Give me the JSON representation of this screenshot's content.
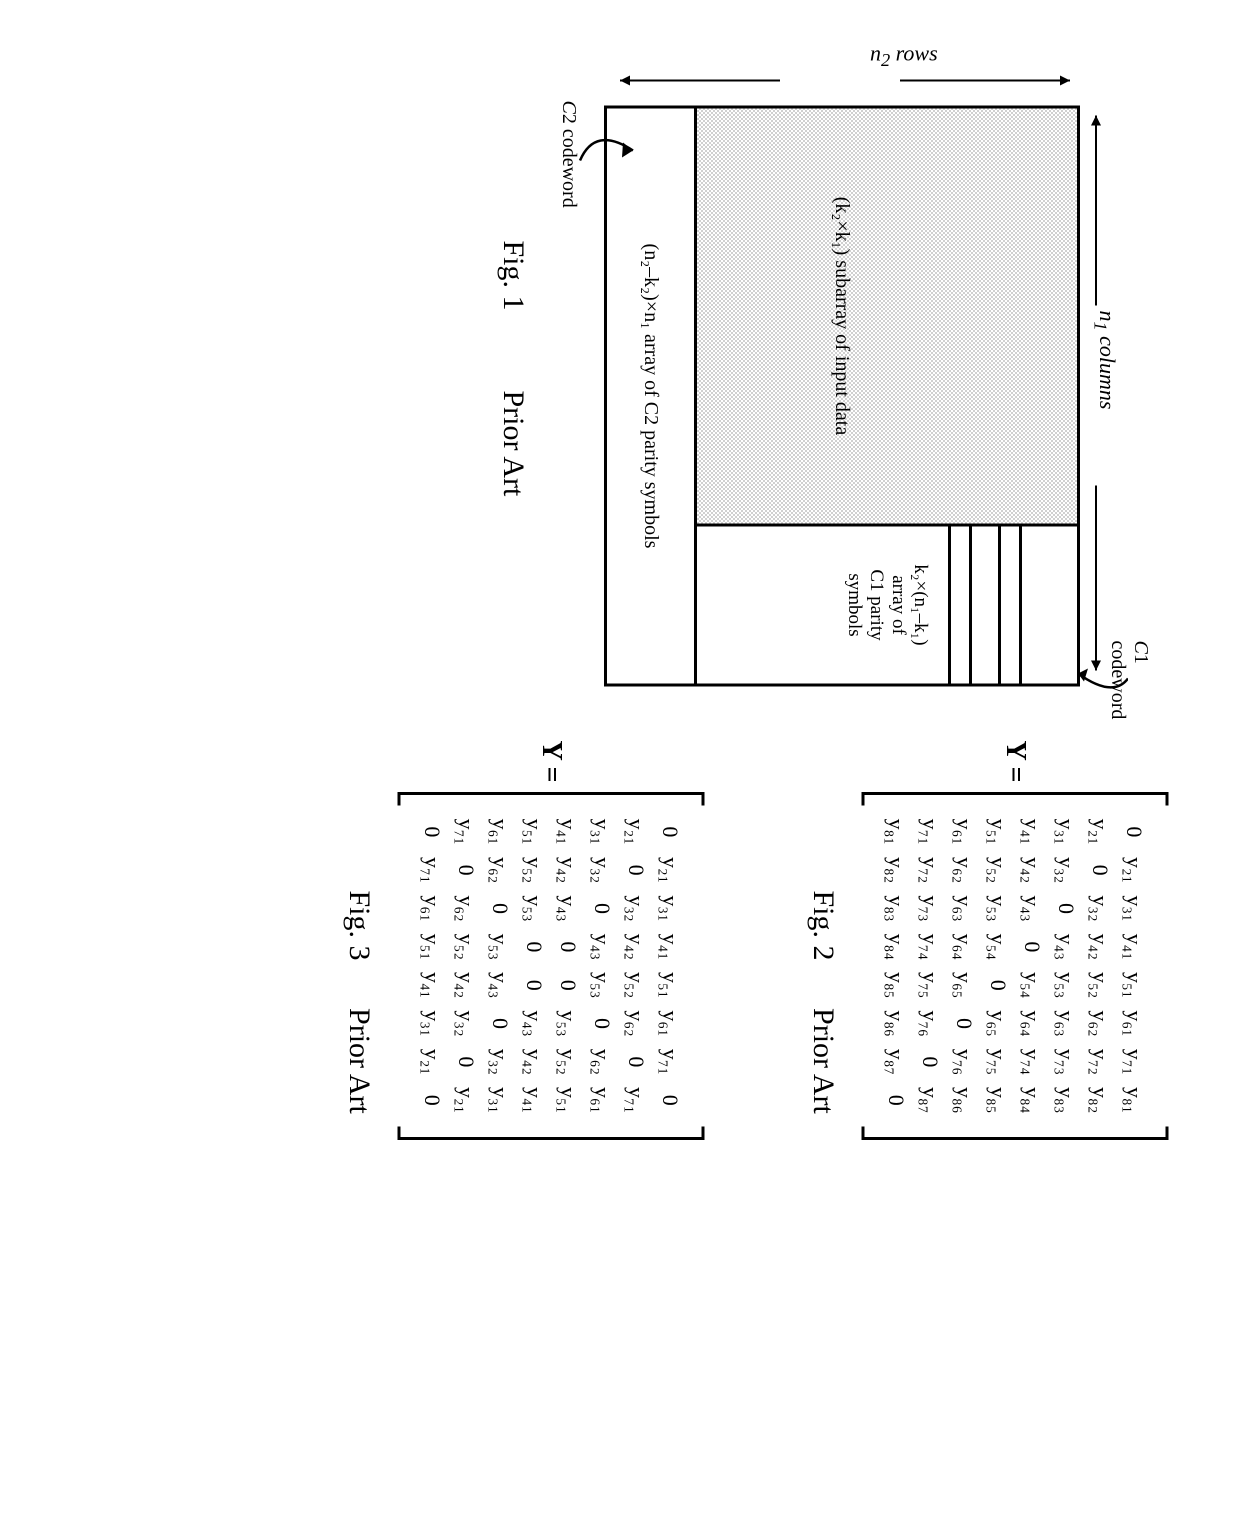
{
  "fig1": {
    "n1_label": "n",
    "n1_sub": "1",
    "cols_word": " columns",
    "n2_label": "n",
    "n2_sub": "2",
    "rows_word": " rows",
    "data_label": "(k₂×k₁) subarray of input data",
    "c1_label": "k₂×(n₁–k₁)\narray of\nC1 parity\nsymbols",
    "c2_label": "(n₂–k₂)×n₁ array of\nC2 parity symbols",
    "c1_codeword": "C1 codeword",
    "c2_codeword": "C2 codeword",
    "caption": "Fig. 1",
    "prior": "Prior Art"
  },
  "fig2": {
    "Y": "Y =",
    "rows": [
      [
        "0",
        "y₂₁",
        "y₃₁",
        "y₄₁",
        "y₅₁",
        "y₆₁",
        "y₇₁",
        "y₈₁"
      ],
      [
        "y₂₁",
        "0",
        "y₃₂",
        "y₄₂",
        "y₅₂",
        "y₆₂",
        "y₇₂",
        "y₈₂"
      ],
      [
        "y₃₁",
        "y₃₂",
        "0",
        "y₄₃",
        "y₅₃",
        "y₆₃",
        "y₇₃",
        "y₈₃"
      ],
      [
        "y₄₁",
        "y₄₂",
        "y₄₃",
        "0",
        "y₅₄",
        "y₆₄",
        "y₇₄",
        "y₈₄"
      ],
      [
        "y₅₁",
        "y₅₂",
        "y₅₃",
        "y₅₄",
        "0",
        "y₆₅",
        "y₇₅",
        "y₈₅"
      ],
      [
        "y₆₁",
        "y₆₂",
        "y₆₃",
        "y₆₄",
        "y₆₅",
        "0",
        "y₇₆",
        "y₈₆"
      ],
      [
        "y₇₁",
        "y₇₂",
        "y₇₃",
        "y₇₄",
        "y₇₅",
        "y₇₆",
        "0",
        "y₈₇"
      ],
      [
        "y₈₁",
        "y₈₂",
        "y₈₃",
        "y₈₄",
        "y₈₅",
        "y₈₆",
        "y₈₇",
        "0"
      ]
    ],
    "caption": "Fig. 2",
    "prior": "Prior Art"
  },
  "fig3": {
    "Y": "Y =",
    "rows": [
      [
        "0",
        "y₂₁",
        "y₃₁",
        "y₄₁",
        "y₅₁",
        "y₆₁",
        "y₇₁",
        "0"
      ],
      [
        "y₂₁",
        "0",
        "y₃₂",
        "y₄₂",
        "y₅₂",
        "y₆₂",
        "0",
        "y₇₁"
      ],
      [
        "y₃₁",
        "y₃₂",
        "0",
        "y₄₃",
        "y₅₃",
        "0",
        "y₆₂",
        "y₆₁"
      ],
      [
        "y₄₁",
        "y₄₂",
        "y₄₃",
        "0",
        "0",
        "y₅₃",
        "y₅₂",
        "y₅₁"
      ],
      [
        "y₅₁",
        "y₅₂",
        "y₅₃",
        "0",
        "0",
        "y₄₃",
        "y₄₂",
        "y₄₁"
      ],
      [
        "y₆₁",
        "y₆₂",
        "0",
        "y₅₃",
        "y₄₃",
        "0",
        "y₃₂",
        "y₃₁"
      ],
      [
        "y₇₁",
        "0",
        "y₆₂",
        "y₅₂",
        "y₄₂",
        "y₃₂",
        "0",
        "y₂₁"
      ],
      [
        "0",
        "y₇₁",
        "y₆₁",
        "y₅₁",
        "y₄₁",
        "y₃₁",
        "y₂₁",
        "0"
      ]
    ],
    "caption": "Fig. 3",
    "prior": "Prior Art"
  },
  "style": {
    "bracket_stroke": "#000000",
    "bracket_width": 3,
    "matrix_fontsize": 22,
    "caption_fontsize": 30,
    "bg": "#ffffff",
    "box_stroke": "#000000",
    "stipple": "#d0d0d0"
  }
}
